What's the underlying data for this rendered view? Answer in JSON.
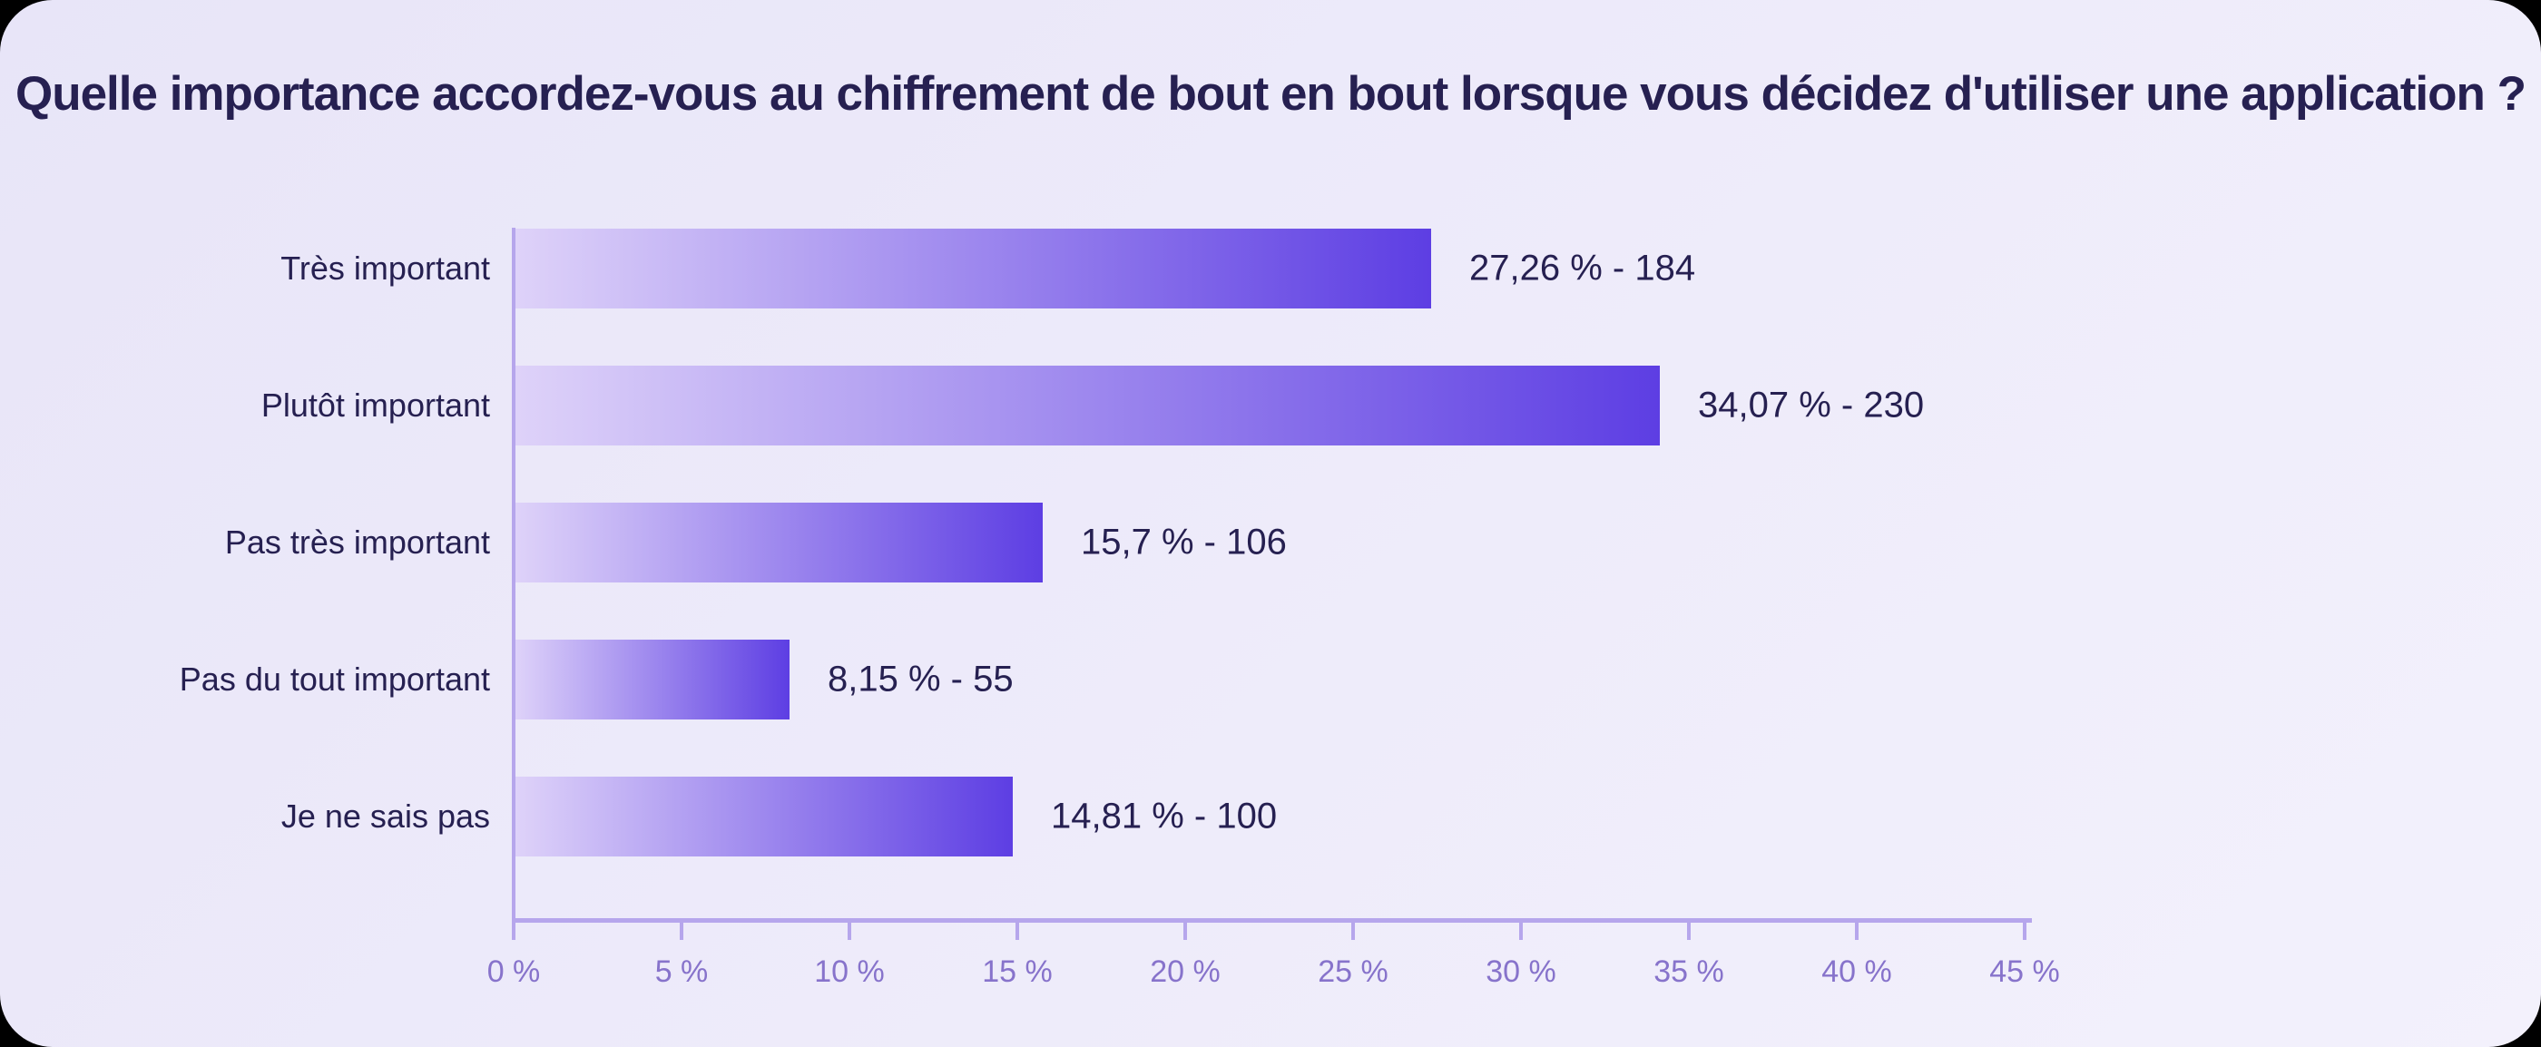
{
  "chart_data": {
    "type": "bar",
    "orientation": "horizontal",
    "title": "Quelle importance accordez-vous au chiffrement de bout en bout lorsque vous décidez d'utiliser une application ?",
    "categories": [
      "Très important",
      "Plutôt important",
      "Pas très important",
      "Pas du tout important",
      "Je ne sais pas"
    ],
    "values": [
      27.26,
      34.07,
      15.7,
      8.15,
      14.81
    ],
    "counts": [
      184,
      230,
      106,
      55,
      100
    ],
    "value_labels": [
      "27,26 % - 184",
      "34,07 % - 230",
      "15,7 % - 106",
      "8,15 % - 55",
      "14,81 % - 100"
    ],
    "x_ticks": [
      "0 %",
      "5 %",
      "10 %",
      "15 %",
      "20 %",
      "25 %",
      "30 %",
      "35 %",
      "40 %",
      "45 %"
    ],
    "xlim": [
      0,
      45
    ],
    "xlabel": "",
    "ylabel": "",
    "grid": false,
    "legend": "none"
  },
  "style": {
    "title_color": "#262051",
    "label_color": "#262051",
    "tick_label_color": "#8773cb",
    "axis_color": "#b6a6ec",
    "bar_gradient_start": "#ded2f9",
    "bar_gradient_end": "#5d3ee3",
    "card_bg_start": "#e8e5f8",
    "card_bg_end": "#f3f1fc",
    "outer_bg": "#000000"
  }
}
